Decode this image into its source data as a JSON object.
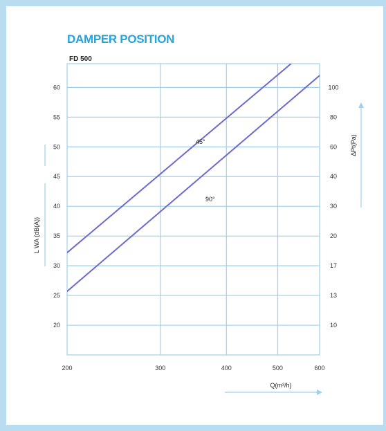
{
  "figure": {
    "title": "DAMPER POSITION",
    "subtitle": "FD 500"
  },
  "chart_data": {
    "type": "line",
    "title": "DAMPER POSITION",
    "subtitle": "FD 500",
    "x_scale": "log",
    "xlim": [
      200,
      600
    ],
    "x_ticks": [
      200,
      300,
      400,
      500,
      600
    ],
    "xlabel": "Q(m³/h)",
    "ylabel_left": "L WA (dB(A))",
    "ylim_left": [
      15,
      64
    ],
    "y_ticks_left": [
      20,
      25,
      30,
      35,
      40,
      45,
      50,
      55,
      60
    ],
    "ylabel_right": "ΔPt(Pa)",
    "y_ticks_right": [
      "10",
      "13",
      "17",
      "20",
      "30",
      "40",
      "60",
      "80",
      "100"
    ],
    "grid": true,
    "series": [
      {
        "name": "45°",
        "points": [
          [
            200,
            32.2
          ],
          [
            530,
            64
          ]
        ]
      },
      {
        "name": "90°",
        "points": [
          [
            200,
            25.7
          ],
          [
            600,
            62
          ]
        ]
      }
    ],
    "colors": {
      "grid": "#9fd0ec",
      "line": "#6a6ad0",
      "arrow": "#9fd0ec"
    }
  }
}
